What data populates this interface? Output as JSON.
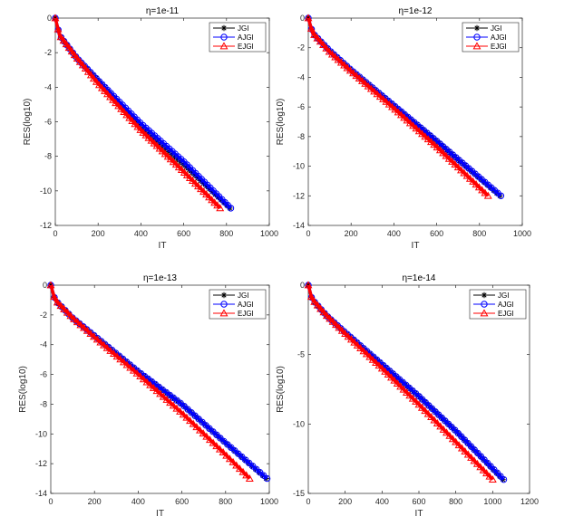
{
  "chart_data": [
    {
      "type": "line",
      "title": "η=1e-11",
      "xlabel": "IT",
      "ylabel": "RES(log10)",
      "xlim": [
        0,
        1000
      ],
      "ylim": [
        -12,
        0
      ],
      "xticks": [
        0,
        200,
        400,
        600,
        800,
        1000
      ],
      "yticks": [
        0,
        -2,
        -4,
        -6,
        -8,
        -10,
        -12
      ],
      "grid": false,
      "legend_position": "top-right",
      "series": [
        {
          "name": "JGI",
          "color": "#000000",
          "marker": "asterisk",
          "x": [
            0,
            20,
            100,
            200,
            400,
            600,
            815
          ],
          "y": [
            0,
            -1.0,
            -2.3,
            -3.6,
            -6.3,
            -8.5,
            -11.0
          ]
        },
        {
          "name": "AJGI",
          "color": "#0000ff",
          "marker": "circle",
          "x": [
            0,
            20,
            100,
            200,
            400,
            600,
            820
          ],
          "y": [
            0,
            -1.0,
            -2.3,
            -3.6,
            -6.1,
            -8.3,
            -11.0
          ]
        },
        {
          "name": "EJGI",
          "color": "#ff0000",
          "marker": "triangle",
          "x": [
            0,
            20,
            100,
            200,
            400,
            600,
            770
          ],
          "y": [
            0,
            -1.0,
            -2.3,
            -3.8,
            -6.5,
            -8.9,
            -11.0
          ]
        }
      ]
    },
    {
      "type": "line",
      "title": "η=1e-12",
      "xlabel": "IT",
      "ylabel": "RES(log10)",
      "xlim": [
        0,
        1000
      ],
      "ylim": [
        -14,
        0
      ],
      "xticks": [
        0,
        200,
        400,
        600,
        800,
        1000
      ],
      "yticks": [
        0,
        -2,
        -4,
        -6,
        -8,
        -10,
        -12,
        -14
      ],
      "grid": false,
      "legend_position": "top-right",
      "series": [
        {
          "name": "JGI",
          "color": "#000000",
          "marker": "asterisk",
          "x": [
            0,
            20,
            100,
            200,
            400,
            600,
            895
          ],
          "y": [
            0,
            -1.0,
            -2.2,
            -3.5,
            -5.9,
            -8.3,
            -12.0
          ]
        },
        {
          "name": "AJGI",
          "color": "#0000ff",
          "marker": "circle",
          "x": [
            0,
            20,
            100,
            200,
            400,
            600,
            900
          ],
          "y": [
            0,
            -1.0,
            -2.2,
            -3.5,
            -5.9,
            -8.3,
            -12.0
          ]
        },
        {
          "name": "EJGI",
          "color": "#ff0000",
          "marker": "triangle",
          "x": [
            0,
            20,
            100,
            200,
            400,
            600,
            840
          ],
          "y": [
            0,
            -1.0,
            -2.3,
            -3.6,
            -6.1,
            -8.7,
            -12.0
          ]
        }
      ]
    },
    {
      "type": "line",
      "title": "η=1e-13",
      "xlabel": "IT",
      "ylabel": "RES(log10)",
      "xlim": [
        0,
        1000
      ],
      "ylim": [
        -14,
        0
      ],
      "xticks": [
        0,
        200,
        400,
        600,
        800,
        1000
      ],
      "yticks": [
        0,
        -2,
        -4,
        -6,
        -8,
        -10,
        -12,
        -14
      ],
      "grid": false,
      "legend_position": "top-right",
      "series": [
        {
          "name": "JGI",
          "color": "#000000",
          "marker": "asterisk",
          "x": [
            0,
            20,
            100,
            200,
            400,
            600,
            800,
            985
          ],
          "y": [
            0,
            -1.0,
            -2.2,
            -3.4,
            -5.8,
            -8.0,
            -10.6,
            -13.0
          ]
        },
        {
          "name": "AJGI",
          "color": "#0000ff",
          "marker": "circle",
          "x": [
            0,
            20,
            100,
            200,
            400,
            600,
            800,
            990
          ],
          "y": [
            0,
            -1.0,
            -2.2,
            -3.4,
            -5.8,
            -8.0,
            -10.6,
            -13.0
          ]
        },
        {
          "name": "EJGI",
          "color": "#ff0000",
          "marker": "triangle",
          "x": [
            0,
            20,
            100,
            200,
            400,
            600,
            800,
            910
          ],
          "y": [
            0,
            -1.0,
            -2.2,
            -3.5,
            -6.0,
            -8.6,
            -11.4,
            -13.0
          ]
        }
      ]
    },
    {
      "type": "line",
      "title": "η=1e-14",
      "xlabel": "IT",
      "ylabel": "RES(log10)",
      "xlim": [
        0,
        1200
      ],
      "ylim": [
        -15,
        0
      ],
      "xticks": [
        0,
        200,
        400,
        600,
        800,
        1000,
        1200
      ],
      "yticks": [
        0,
        -5,
        -10,
        -15
      ],
      "grid": false,
      "legend_position": "top-right",
      "series": [
        {
          "name": "JGI",
          "color": "#000000",
          "marker": "asterisk",
          "x": [
            0,
            20,
            100,
            200,
            400,
            600,
            800,
            1055
          ],
          "y": [
            0,
            -1.0,
            -2.2,
            -3.4,
            -5.7,
            -8.0,
            -10.5,
            -14.0
          ]
        },
        {
          "name": "AJGI",
          "color": "#0000ff",
          "marker": "circle",
          "x": [
            0,
            20,
            100,
            200,
            400,
            600,
            800,
            1060
          ],
          "y": [
            0,
            -1.0,
            -2.2,
            -3.4,
            -5.7,
            -8.0,
            -10.5,
            -14.0
          ]
        },
        {
          "name": "EJGI",
          "color": "#ff0000",
          "marker": "triangle",
          "x": [
            0,
            20,
            100,
            200,
            400,
            600,
            800,
            1000
          ],
          "y": [
            0,
            -1.0,
            -2.2,
            -3.5,
            -6.0,
            -8.6,
            -11.3,
            -14.0
          ]
        }
      ]
    }
  ]
}
